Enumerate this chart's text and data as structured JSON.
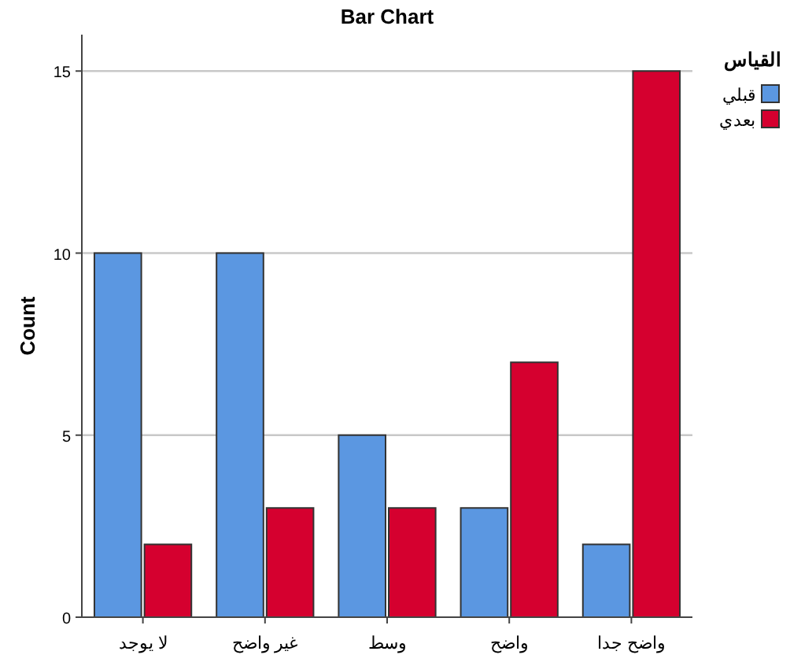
{
  "chart_data": {
    "type": "bar",
    "title": "Bar Chart",
    "ylabel": "Count",
    "legend_title": "القياس",
    "legend": "top right",
    "grid": "y",
    "categories": [
      "لا يوجد",
      "غير واضح",
      "وسط",
      "واضح",
      "واضح جدا"
    ],
    "series": [
      {
        "name": "قبلي",
        "color": "#5b97e1",
        "values": [
          10,
          10,
          5,
          3,
          2
        ]
      },
      {
        "name": "بعدي",
        "color": "#d5002f",
        "values": [
          2,
          3,
          3,
          7,
          15
        ]
      }
    ],
    "ylim": [
      0,
      16
    ],
    "yticks": [
      0,
      5,
      10,
      15
    ]
  }
}
